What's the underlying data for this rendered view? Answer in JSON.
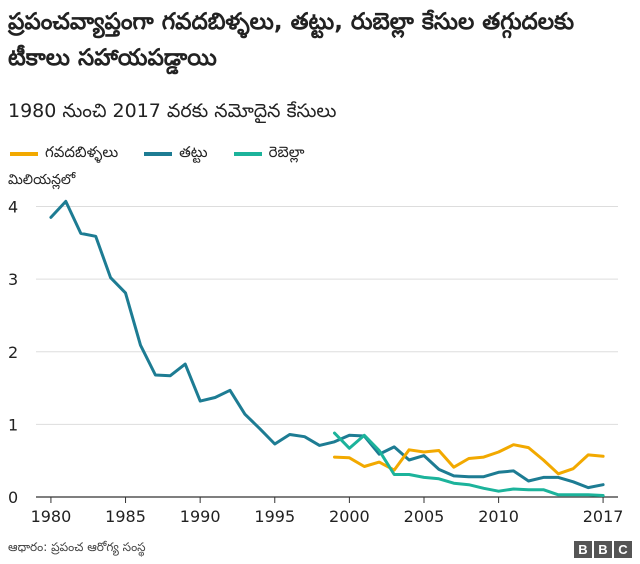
{
  "title": "ప్రపంచవ్యాప్తంగా గవదబిళ్ళలు, తట్టు, రుబెల్లా కేసుల తగ్గుదలకు టీకాలు సహాయపడ్డాయి",
  "subtitle": "1980 నుంచి 2017 వరకు నమోదైన కేసులు",
  "source": "ఆధారం: ప్రపంచ ఆరోగ్య సంస్థ",
  "logo": [
    "B",
    "B",
    "C"
  ],
  "chart_data": {
    "type": "line",
    "ylabel": "మిలియన్లలో",
    "xlim": [
      1979,
      2018
    ],
    "ylim": [
      0,
      4.2
    ],
    "yticks": [
      0,
      1,
      2,
      3,
      4
    ],
    "xticks": [
      1980,
      1985,
      1990,
      1995,
      2000,
      2005,
      2010,
      2017
    ],
    "grid": true,
    "legend_position": "top",
    "series": [
      {
        "name": "గవదబిళ్ళలు",
        "color": "#f2a900",
        "x": [
          1999,
          2000,
          2001,
          2002,
          2003,
          2004,
          2005,
          2006,
          2007,
          2008,
          2009,
          2010,
          2011,
          2012,
          2013,
          2014,
          2015,
          2016,
          2017
        ],
        "values": [
          0.55,
          0.54,
          0.42,
          0.48,
          0.37,
          0.65,
          0.62,
          0.64,
          0.41,
          0.53,
          0.55,
          0.62,
          0.72,
          0.68,
          0.51,
          0.32,
          0.39,
          0.58,
          0.56
        ]
      },
      {
        "name": "తట్టు",
        "color": "#1d7c93",
        "x": [
          1980,
          1981,
          1982,
          1983,
          1984,
          1985,
          1986,
          1987,
          1988,
          1989,
          1990,
          1991,
          1992,
          1993,
          1994,
          1995,
          1996,
          1997,
          1998,
          1999,
          2000,
          2001,
          2002,
          2003,
          2004,
          2005,
          2006,
          2007,
          2008,
          2009,
          2010,
          2011,
          2012,
          2013,
          2014,
          2015,
          2016,
          2017
        ],
        "values": [
          3.85,
          4.07,
          3.63,
          3.59,
          3.02,
          2.81,
          2.09,
          1.68,
          1.67,
          1.83,
          1.32,
          1.37,
          1.47,
          1.14,
          0.94,
          0.73,
          0.86,
          0.83,
          0.71,
          0.76,
          0.85,
          0.84,
          0.59,
          0.69,
          0.51,
          0.57,
          0.38,
          0.29,
          0.28,
          0.28,
          0.34,
          0.36,
          0.22,
          0.27,
          0.27,
          0.21,
          0.13,
          0.17
        ]
      },
      {
        "name": "రెబెల్లా",
        "color": "#1cb39b",
        "x": [
          1999,
          2000,
          2001,
          2002,
          2003,
          2004,
          2005,
          2006,
          2007,
          2008,
          2009,
          2010,
          2011,
          2012,
          2013,
          2014,
          2015,
          2016,
          2017
        ],
        "values": [
          0.88,
          0.67,
          0.85,
          0.64,
          0.31,
          0.31,
          0.27,
          0.25,
          0.19,
          0.17,
          0.12,
          0.08,
          0.11,
          0.1,
          0.1,
          0.03,
          0.03,
          0.03,
          0.02
        ]
      }
    ]
  }
}
